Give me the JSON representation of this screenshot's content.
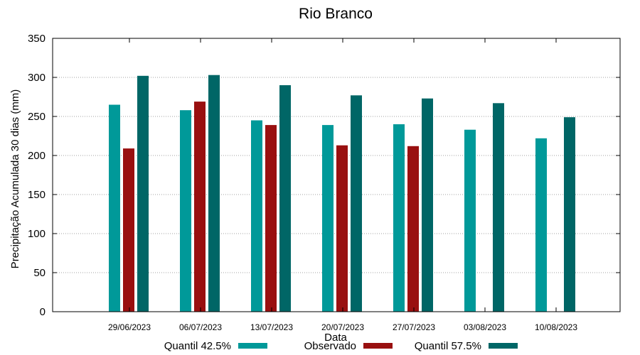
{
  "chart_data": {
    "type": "bar",
    "title": "Rio Branco",
    "xlabel": "Data",
    "ylabel": "Precipitação Acumulada 30 dias (mm)",
    "ylim": [
      0,
      350
    ],
    "yticks": [
      0,
      50,
      100,
      150,
      200,
      250,
      300,
      350
    ],
    "grid": true,
    "legend_position": "bottom",
    "categories": [
      "29/06/2023",
      "06/07/2023",
      "13/07/2023",
      "20/07/2023",
      "27/07/2023",
      "03/08/2023",
      "10/08/2023"
    ],
    "series": [
      {
        "name": "Quantil 42.5%",
        "color": "#009999",
        "values": [
          265,
          258,
          245,
          239,
          240,
          233,
          222
        ]
      },
      {
        "name": "Observado",
        "color": "#991010",
        "values": [
          209,
          269,
          239,
          213,
          212,
          null,
          null
        ]
      },
      {
        "name": "Quantil 57.5%",
        "color": "#006666",
        "values": [
          302,
          303,
          290,
          277,
          273,
          267,
          249
        ]
      }
    ]
  }
}
